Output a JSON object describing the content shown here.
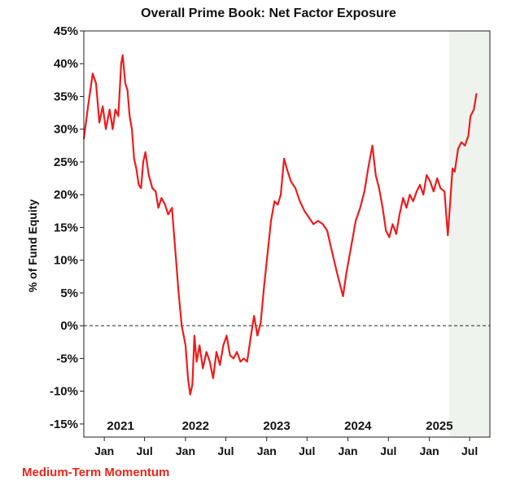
{
  "chart_data": {
    "type": "line",
    "title": "Overall Prime Book: Net Factor Exposure",
    "xlabel": "",
    "ylabel": "% of Fund Equity",
    "footer_label": "Medium-Term Momentum",
    "x_range": [
      "2020-10-01",
      "2025-09-30"
    ],
    "ylim": [
      -17,
      45
    ],
    "y_ticks": [
      45,
      40,
      35,
      30,
      25,
      20,
      15,
      10,
      5,
      0,
      -5,
      -10,
      -15
    ],
    "y_tick_labels": [
      "45%",
      "40%",
      "35%",
      "30%",
      "25%",
      "20%",
      "15%",
      "10%",
      "5%",
      "0%",
      "-5%",
      "-10%",
      "-15%"
    ],
    "year_labels": [
      {
        "label": "2021",
        "date": "2021-03-15"
      },
      {
        "label": "2022",
        "date": "2022-02-15"
      },
      {
        "label": "2023",
        "date": "2023-02-15"
      },
      {
        "label": "2024",
        "date": "2024-02-15"
      },
      {
        "label": "2025",
        "date": "2025-02-15"
      }
    ],
    "month_ticks": [
      {
        "label": "Jan",
        "date": "2021-01-01"
      },
      {
        "label": "Jul",
        "date": "2021-07-01"
      },
      {
        "label": "Jan",
        "date": "2022-01-01"
      },
      {
        "label": "Jul",
        "date": "2022-07-01"
      },
      {
        "label": "Jan",
        "date": "2023-01-01"
      },
      {
        "label": "Jul",
        "date": "2023-07-01"
      },
      {
        "label": "Jan",
        "date": "2024-01-01"
      },
      {
        "label": "Jul",
        "date": "2024-07-01"
      },
      {
        "label": "Jan",
        "date": "2025-01-01"
      },
      {
        "label": "Jul",
        "date": "2025-07-01"
      }
    ],
    "reference_line": {
      "y": 0,
      "style": "dashed"
    },
    "shaded_region": {
      "x_start": "2025-04-01",
      "x_end": "2025-09-30",
      "color": "#eef3ee"
    },
    "grid": false,
    "series": [
      {
        "color": "#ee1c1c",
        "points": [
          [
            "2020-10-01",
            28.5
          ],
          [
            "2020-10-20",
            33.5
          ],
          [
            "2020-11-10",
            38.5
          ],
          [
            "2020-11-25",
            37.0
          ],
          [
            "2020-12-10",
            31.0
          ],
          [
            "2020-12-25",
            33.5
          ],
          [
            "2021-01-08",
            30.0
          ],
          [
            "2021-01-25",
            33.0
          ],
          [
            "2021-02-08",
            30.0
          ],
          [
            "2021-02-20",
            33.0
          ],
          [
            "2021-03-05",
            32.0
          ],
          [
            "2021-03-18",
            40.0
          ],
          [
            "2021-03-25",
            41.3
          ],
          [
            "2021-04-05",
            37.0
          ],
          [
            "2021-04-15",
            36.0
          ],
          [
            "2021-04-25",
            32.0
          ],
          [
            "2021-05-05",
            30.0
          ],
          [
            "2021-05-15",
            25.5
          ],
          [
            "2021-05-25",
            24.0
          ],
          [
            "2021-06-05",
            21.5
          ],
          [
            "2021-06-15",
            21.0
          ],
          [
            "2021-06-25",
            25.0
          ],
          [
            "2021-07-05",
            26.5
          ],
          [
            "2021-07-20",
            23.0
          ],
          [
            "2021-08-05",
            21.0
          ],
          [
            "2021-08-20",
            20.5
          ],
          [
            "2021-09-01",
            18.0
          ],
          [
            "2021-09-15",
            19.5
          ],
          [
            "2021-10-01",
            18.5
          ],
          [
            "2021-10-15",
            17.0
          ],
          [
            "2021-11-01",
            18.0
          ],
          [
            "2021-11-15",
            12.0
          ],
          [
            "2021-12-01",
            5.0
          ],
          [
            "2021-12-15",
            0.0
          ],
          [
            "2022-01-01",
            -3.0
          ],
          [
            "2022-01-12",
            -8.0
          ],
          [
            "2022-01-22",
            -10.5
          ],
          [
            "2022-02-01",
            -9.0
          ],
          [
            "2022-02-10",
            -1.5
          ],
          [
            "2022-02-20",
            -5.5
          ],
          [
            "2022-03-05",
            -3.0
          ],
          [
            "2022-03-20",
            -6.5
          ],
          [
            "2022-04-05",
            -4.0
          ],
          [
            "2022-04-20",
            -5.5
          ],
          [
            "2022-05-05",
            -8.0
          ],
          [
            "2022-05-20",
            -4.0
          ],
          [
            "2022-06-05",
            -6.0
          ],
          [
            "2022-06-20",
            -3.0
          ],
          [
            "2022-07-05",
            -1.5
          ],
          [
            "2022-07-20",
            -4.5
          ],
          [
            "2022-08-05",
            -5.0
          ],
          [
            "2022-08-20",
            -4.0
          ],
          [
            "2022-09-05",
            -5.5
          ],
          [
            "2022-09-20",
            -5.0
          ],
          [
            "2022-10-05",
            -5.5
          ],
          [
            "2022-10-20",
            -2.0
          ],
          [
            "2022-11-05",
            1.5
          ],
          [
            "2022-11-20",
            -1.5
          ],
          [
            "2022-12-05",
            0.5
          ],
          [
            "2022-12-20",
            6.0
          ],
          [
            "2023-01-05",
            11.0
          ],
          [
            "2023-01-20",
            16.0
          ],
          [
            "2023-02-05",
            19.0
          ],
          [
            "2023-02-20",
            18.5
          ],
          [
            "2023-03-05",
            20.0
          ],
          [
            "2023-03-20",
            25.5
          ],
          [
            "2023-04-01",
            24.0
          ],
          [
            "2023-04-20",
            22.0
          ],
          [
            "2023-05-10",
            21.0
          ],
          [
            "2023-05-30",
            19.0
          ],
          [
            "2023-06-20",
            17.5
          ],
          [
            "2023-07-10",
            16.5
          ],
          [
            "2023-07-30",
            15.5
          ],
          [
            "2023-08-20",
            16.0
          ],
          [
            "2023-09-10",
            15.5
          ],
          [
            "2023-09-30",
            14.5
          ],
          [
            "2023-10-20",
            11.5
          ],
          [
            "2023-11-10",
            8.5
          ],
          [
            "2023-11-25",
            6.5
          ],
          [
            "2023-12-10",
            4.5
          ],
          [
            "2023-12-25",
            8.0
          ],
          [
            "2024-01-15",
            12.0
          ],
          [
            "2024-02-05",
            16.0
          ],
          [
            "2024-02-25",
            18.0
          ],
          [
            "2024-03-15",
            20.5
          ],
          [
            "2024-04-01",
            24.0
          ],
          [
            "2024-04-20",
            27.5
          ],
          [
            "2024-05-05",
            23.0
          ],
          [
            "2024-05-20",
            21.0
          ],
          [
            "2024-06-05",
            18.0
          ],
          [
            "2024-06-20",
            14.5
          ],
          [
            "2024-07-05",
            13.5
          ],
          [
            "2024-07-20",
            15.5
          ],
          [
            "2024-08-05",
            14.0
          ],
          [
            "2024-08-20",
            17.0
          ],
          [
            "2024-09-05",
            19.5
          ],
          [
            "2024-09-20",
            18.0
          ],
          [
            "2024-10-05",
            20.0
          ],
          [
            "2024-10-20",
            19.0
          ],
          [
            "2024-11-05",
            20.5
          ],
          [
            "2024-11-20",
            21.5
          ],
          [
            "2024-12-05",
            20.0
          ],
          [
            "2024-12-20",
            23.0
          ],
          [
            "2025-01-05",
            22.0
          ],
          [
            "2025-01-20",
            20.5
          ],
          [
            "2025-02-05",
            22.5
          ],
          [
            "2025-02-20",
            21.0
          ],
          [
            "2025-03-10",
            20.5
          ],
          [
            "2025-03-25",
            13.8
          ],
          [
            "2025-04-05",
            19.0
          ],
          [
            "2025-04-15",
            24.0
          ],
          [
            "2025-04-25",
            23.5
          ],
          [
            "2025-05-10",
            27.0
          ],
          [
            "2025-05-25",
            28.0
          ],
          [
            "2025-06-10",
            27.5
          ],
          [
            "2025-06-25",
            29.0
          ],
          [
            "2025-07-05",
            32.0
          ],
          [
            "2025-07-20",
            33.0
          ],
          [
            "2025-08-01",
            35.5
          ]
        ]
      }
    ]
  }
}
